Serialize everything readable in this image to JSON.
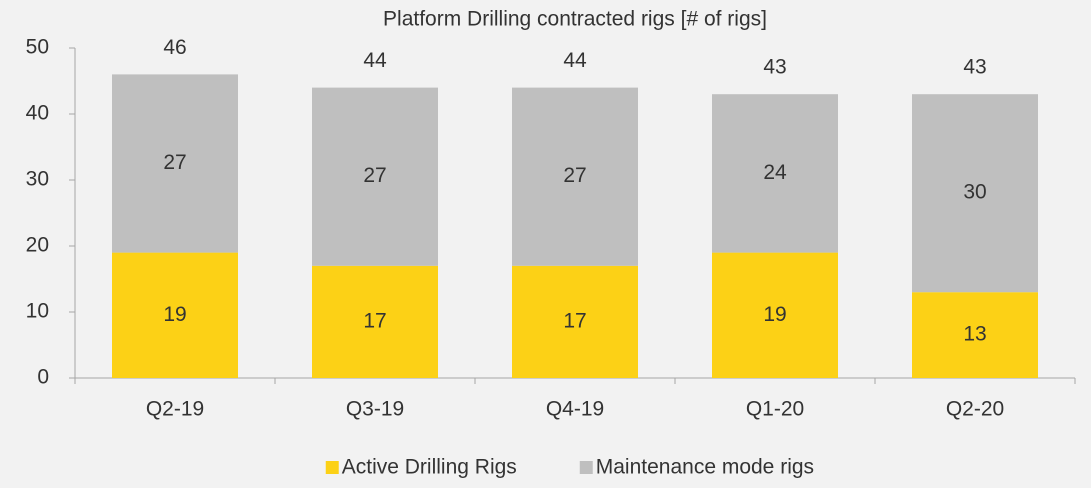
{
  "chart_data": {
    "type": "stacked_bar",
    "title": "Platform Drilling contracted rigs [# of rigs]",
    "categories": [
      "Q2-19",
      "Q3-19",
      "Q4-19",
      "Q1-20",
      "Q2-20"
    ],
    "series": [
      {
        "name": "Active Drilling Rigs",
        "color": "#fcd116",
        "values": [
          19,
          17,
          17,
          19,
          13
        ]
      },
      {
        "name": "Maintenance mode rigs",
        "color": "#bfbfbf",
        "values": [
          27,
          27,
          27,
          24,
          30
        ]
      }
    ],
    "totals": [
      46,
      44,
      44,
      43,
      43
    ],
    "ylim": [
      0,
      50
    ],
    "yticks": [
      0,
      10,
      20,
      30,
      40,
      50
    ],
    "grid": false
  }
}
